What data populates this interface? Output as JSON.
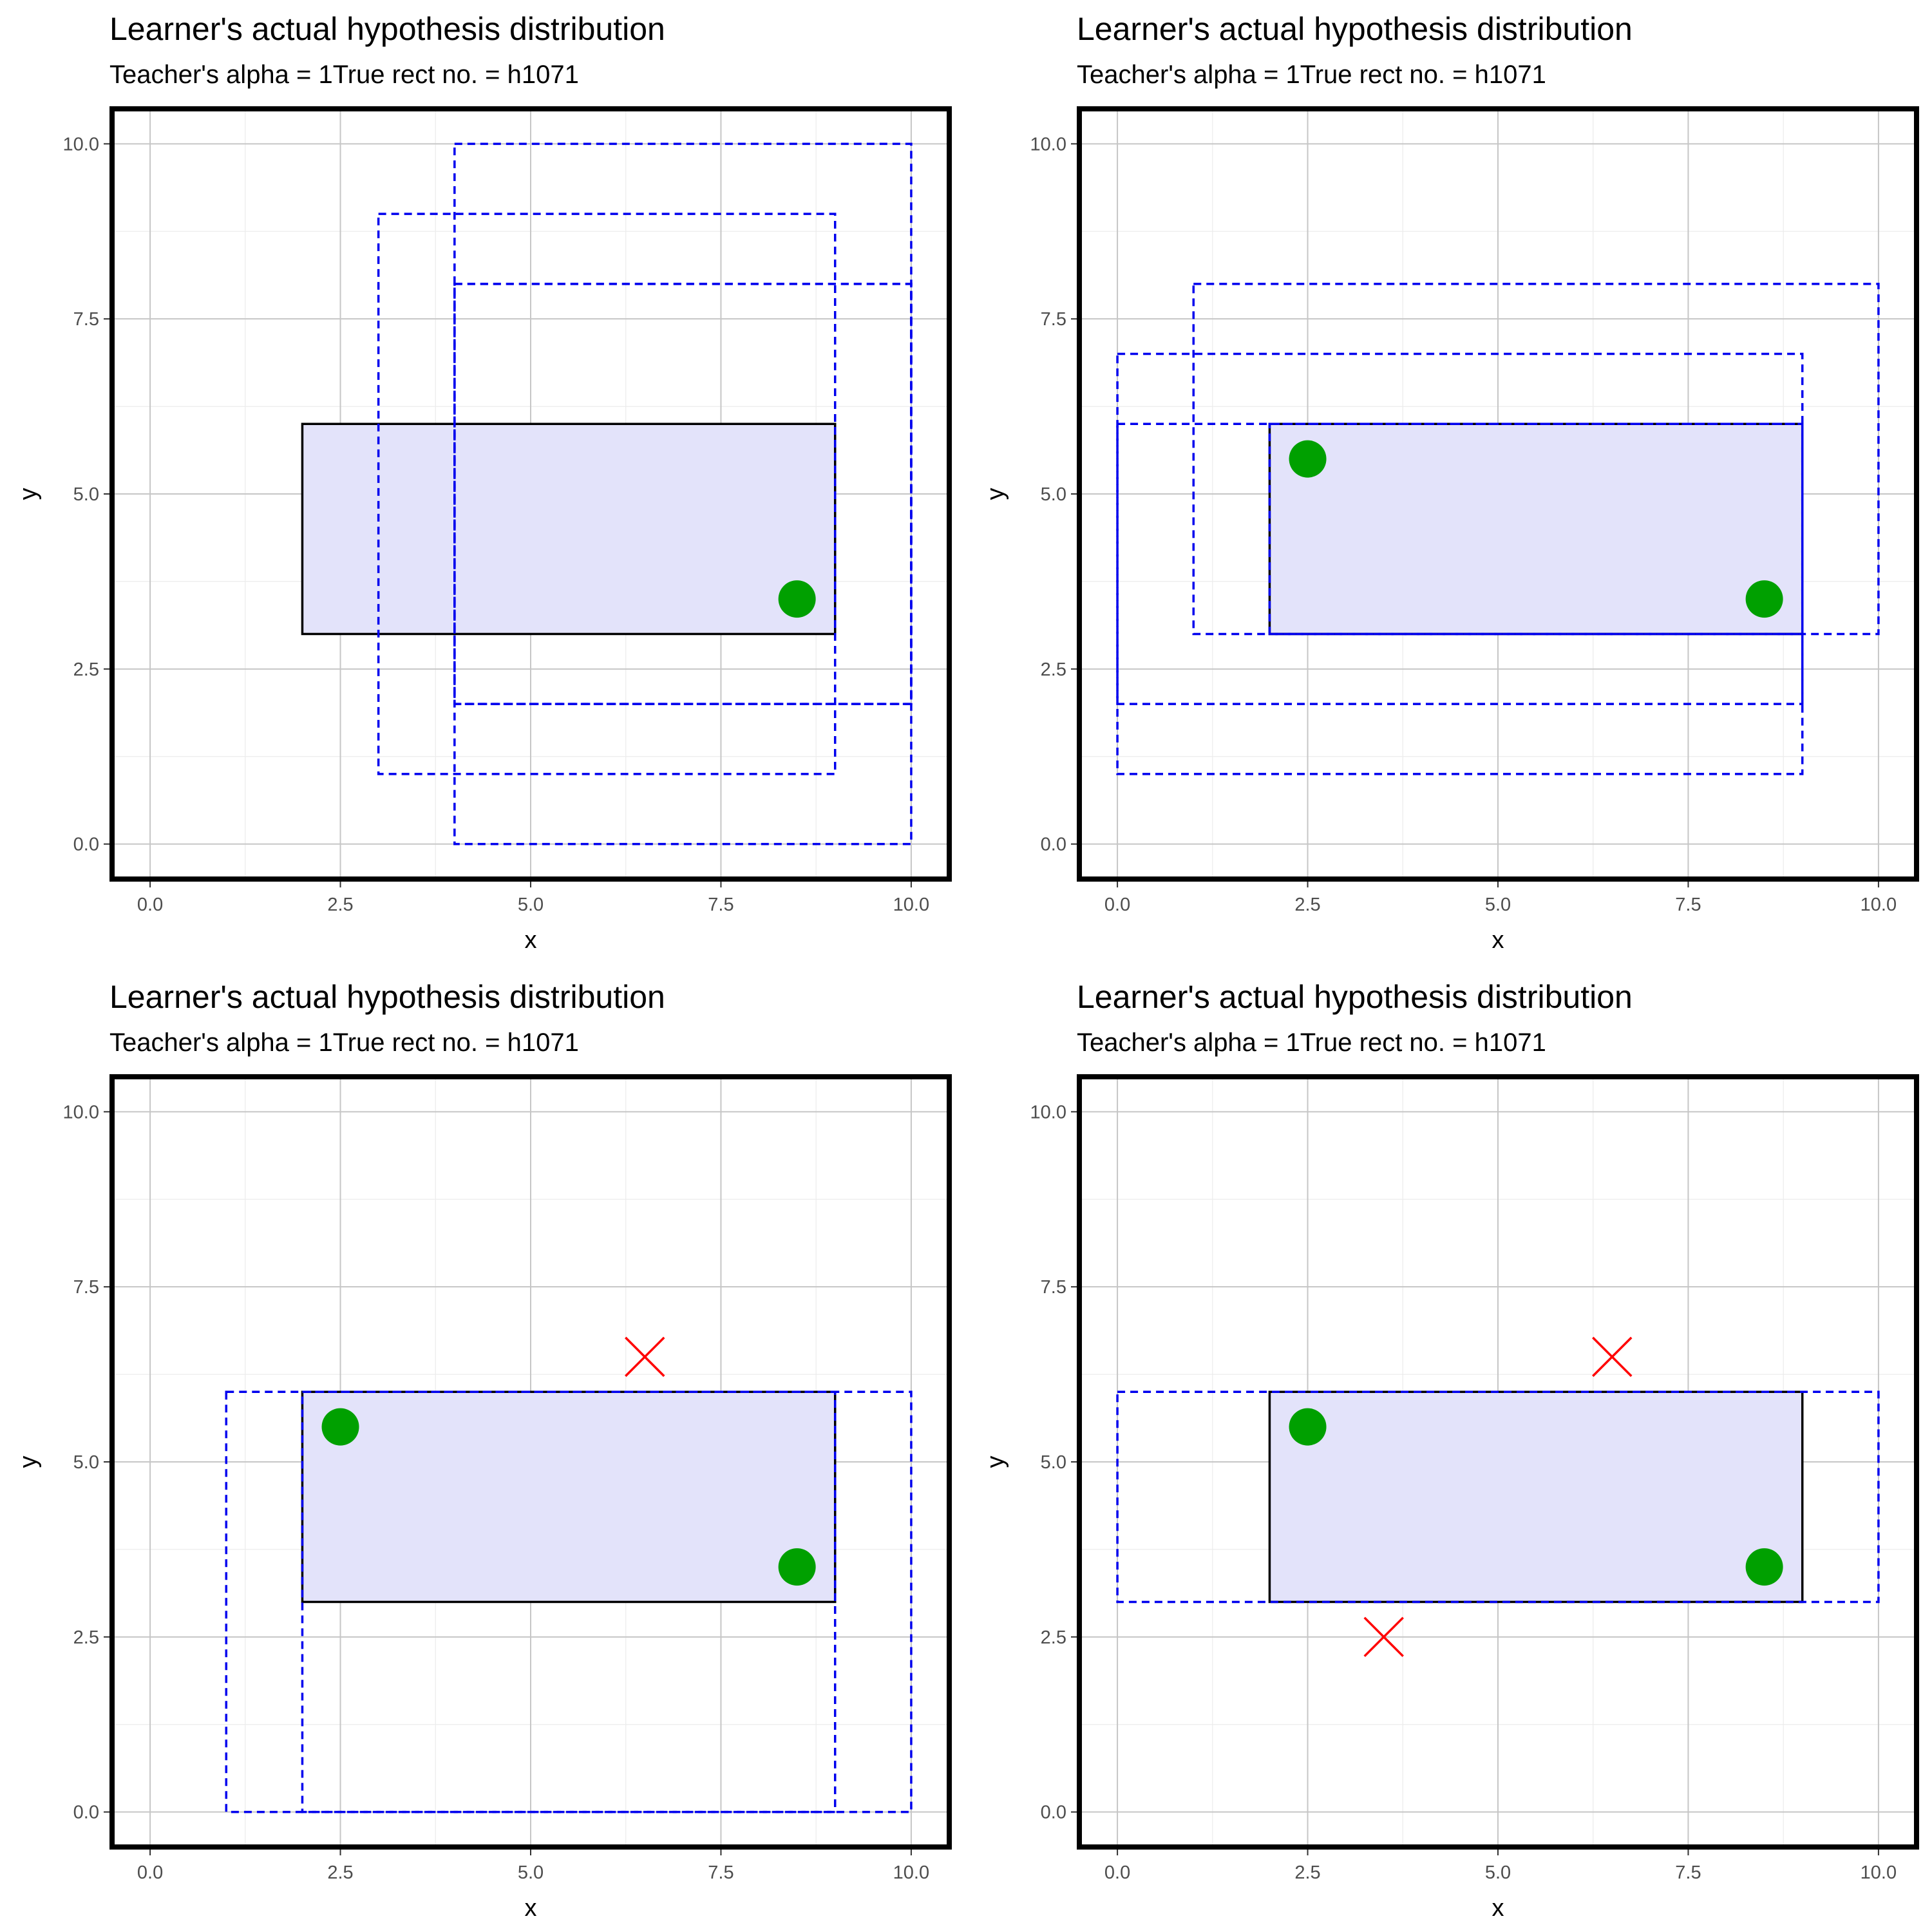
{
  "chart_data": [
    {
      "type": "scatter",
      "title": "Learner's actual hypothesis distribution",
      "subtitle": "Teacher's alpha = 1True rect no. = h1071",
      "xlabel": "x",
      "ylabel": "y",
      "xlim": [
        -0.5,
        10.5
      ],
      "ylim": [
        -0.5,
        10.5
      ],
      "x_ticks": [
        0,
        2.5,
        5,
        7.5,
        10
      ],
      "y_ticks": [
        0,
        2.5,
        5,
        7.5,
        10
      ],
      "x_tick_labels": [
        "0.0",
        "2.5",
        "5.0",
        "7.5",
        "10.0"
      ],
      "y_tick_labels": [
        "0.0",
        "2.5",
        "5.0",
        "7.5",
        "10.0"
      ],
      "true_rect": {
        "x1": 2,
        "y1": 3,
        "x2": 9,
        "y2": 6,
        "fill": "#e3e3fa"
      },
      "hypotheses": [
        {
          "x1": 4,
          "y1": 2,
          "x2": 10,
          "y2": 8
        },
        {
          "x1": 3,
          "y1": 1,
          "x2": 9,
          "y2": 9
        },
        {
          "x1": 4,
          "y1": 0,
          "x2": 10,
          "y2": 8
        },
        {
          "x1": 4,
          "y1": 2,
          "x2": 10,
          "y2": 10
        }
      ],
      "positive_points": [
        {
          "x": 8.5,
          "y": 3.5
        }
      ],
      "negative_points": []
    },
    {
      "type": "scatter",
      "title": "Learner's actual hypothesis distribution",
      "subtitle": "Teacher's alpha = 1True rect no. = h1071",
      "xlabel": "x",
      "ylabel": "y",
      "xlim": [
        -0.5,
        10.5
      ],
      "ylim": [
        -0.5,
        10.5
      ],
      "x_ticks": [
        0,
        2.5,
        5,
        7.5,
        10
      ],
      "y_ticks": [
        0,
        2.5,
        5,
        7.5,
        10
      ],
      "x_tick_labels": [
        "0.0",
        "2.5",
        "5.0",
        "7.5",
        "10.0"
      ],
      "y_tick_labels": [
        "0.0",
        "2.5",
        "5.0",
        "7.5",
        "10.0"
      ],
      "true_rect": {
        "x1": 2,
        "y1": 3,
        "x2": 9,
        "y2": 6,
        "fill": "#e3e3fa"
      },
      "hypotheses": [
        {
          "x1": 1,
          "y1": 3,
          "x2": 10,
          "y2": 8
        },
        {
          "x1": 0,
          "y1": 2,
          "x2": 9,
          "y2": 7
        },
        {
          "x1": 0,
          "y1": 1,
          "x2": 9,
          "y2": 6
        },
        {
          "x1": 2,
          "y1": 3,
          "x2": 9,
          "y2": 6
        }
      ],
      "positive_points": [
        {
          "x": 2.5,
          "y": 5.5
        },
        {
          "x": 8.5,
          "y": 3.5
        }
      ],
      "negative_points": []
    },
    {
      "type": "scatter",
      "title": "Learner's actual hypothesis distribution",
      "subtitle": "Teacher's alpha = 1True rect no. = h1071",
      "xlabel": "x",
      "ylabel": "y",
      "xlim": [
        -0.5,
        10.5
      ],
      "ylim": [
        -0.5,
        10.5
      ],
      "x_ticks": [
        0,
        2.5,
        5,
        7.5,
        10
      ],
      "y_ticks": [
        0,
        2.5,
        5,
        7.5,
        10
      ],
      "x_tick_labels": [
        "0.0",
        "2.5",
        "5.0",
        "7.5",
        "10.0"
      ],
      "y_tick_labels": [
        "0.0",
        "2.5",
        "5.0",
        "7.5",
        "10.0"
      ],
      "true_rect": {
        "x1": 2,
        "y1": 3,
        "x2": 9,
        "y2": 6,
        "fill": "#e3e3fa"
      },
      "hypotheses": [
        {
          "x1": 1,
          "y1": 0,
          "x2": 10,
          "y2": 6
        },
        {
          "x1": 2,
          "y1": 0,
          "x2": 9,
          "y2": 6
        }
      ],
      "positive_points": [
        {
          "x": 2.5,
          "y": 5.5
        },
        {
          "x": 8.5,
          "y": 3.5
        }
      ],
      "negative_points": [
        {
          "x": 6.5,
          "y": 6.5
        }
      ]
    },
    {
      "type": "scatter",
      "title": "Learner's actual hypothesis distribution",
      "subtitle": "Teacher's alpha = 1True rect no. = h1071",
      "xlabel": "x",
      "ylabel": "y",
      "xlim": [
        -0.5,
        10.5
      ],
      "ylim": [
        -0.5,
        10.5
      ],
      "x_ticks": [
        0,
        2.5,
        5,
        7.5,
        10
      ],
      "y_ticks": [
        0,
        2.5,
        5,
        7.5,
        10
      ],
      "x_tick_labels": [
        "0.0",
        "2.5",
        "5.0",
        "7.5",
        "10.0"
      ],
      "y_tick_labels": [
        "0.0",
        "2.5",
        "5.0",
        "7.5",
        "10.0"
      ],
      "true_rect": {
        "x1": 2,
        "y1": 3,
        "x2": 9,
        "y2": 6,
        "fill": "#e3e3fa"
      },
      "hypotheses": [
        {
          "x1": 0,
          "y1": 3,
          "x2": 10,
          "y2": 6
        }
      ],
      "positive_points": [
        {
          "x": 2.5,
          "y": 5.5
        },
        {
          "x": 8.5,
          "y": 3.5
        }
      ],
      "negative_points": [
        {
          "x": 6.5,
          "y": 6.5
        },
        {
          "x": 3.5,
          "y": 2.5
        }
      ]
    }
  ]
}
